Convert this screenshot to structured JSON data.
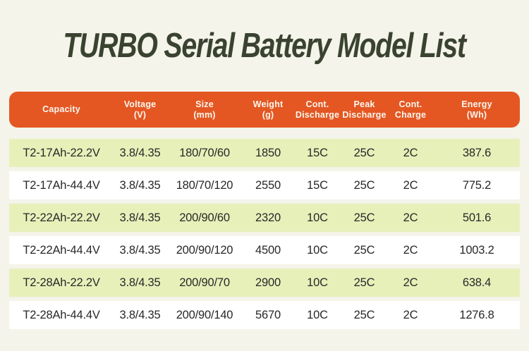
{
  "title": "TURBO Serial Battery Model List",
  "colors": {
    "page_bg": "#F4F4EA",
    "header_bg": "#E45723",
    "header_text": "#FCF7EF",
    "row_green": "#E8F0BA",
    "row_white": "#FFFFFF",
    "title_text": "#3A4230",
    "cell_text": "#282828"
  },
  "header_labels": [
    "Capacity",
    "Voltage\n(V)",
    "Size\n(mm)",
    "Weight\n(g)",
    "Cont.\nDischarge",
    "Peak\nDischarge",
    "Cont.\nCharge",
    "Energy\n(Wh)"
  ],
  "chart_data": {
    "type": "table",
    "title": "TURBO Serial Battery Model List",
    "columns": [
      "Capacity",
      "Voltage (V)",
      "Size (mm)",
      "Weight (g)",
      "Cont. Discharge",
      "Peak Discharge",
      "Cont. Charge",
      "Energy (Wh)"
    ],
    "rows": [
      [
        "T2-17Ah-22.2V",
        "3.8/4.35",
        "180/70/60",
        "1850",
        "15C",
        "25C",
        "2C",
        "387.6"
      ],
      [
        "T2-17Ah-44.4V",
        "3.8/4.35",
        "180/70/120",
        "2550",
        "15C",
        "25C",
        "2C",
        "775.2"
      ],
      [
        "T2-22Ah-22.2V",
        "3.8/4.35",
        "200/90/60",
        "2320",
        "10C",
        "25C",
        "2C",
        "501.6"
      ],
      [
        "T2-22Ah-44.4V",
        "3.8/4.35",
        "200/90/120",
        "4500",
        "10C",
        "25C",
        "2C",
        "1003.2"
      ],
      [
        "T2-28Ah-22.2V",
        "3.8/4.35",
        "200/90/70",
        "2900",
        "10C",
        "25C",
        "2C",
        "638.4"
      ],
      [
        "T2-28Ah-44.4V",
        "3.8/4.35",
        "200/90/140",
        "5670",
        "10C",
        "25C",
        "2C",
        "1276.8"
      ]
    ],
    "layout": {
      "zebra_striping": true,
      "first_row_color": "green",
      "header_style": "orange rounded pill"
    }
  }
}
